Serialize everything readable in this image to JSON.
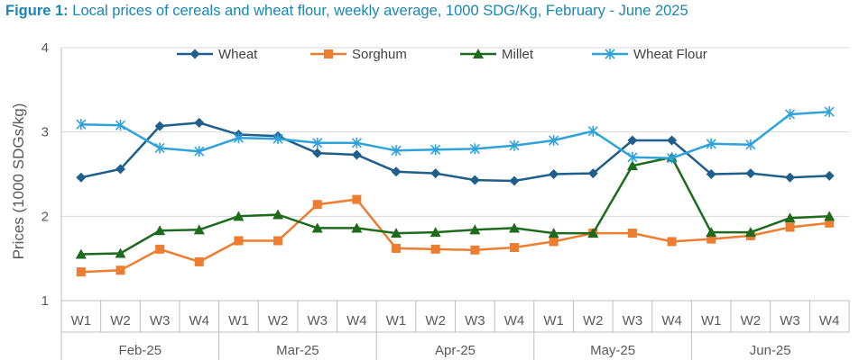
{
  "title": {
    "prefix": "Figure 1:",
    "text": "Local prices of cereals and wheat flour, weekly average, 1000 SDG/Kg, February - June 2025"
  },
  "chart_data": {
    "type": "line",
    "ylabel": "Prices (1000 SDGs/kg)",
    "xlabel": "",
    "ylim": [
      1,
      4
    ],
    "yticks": [
      1,
      2,
      3,
      4
    ],
    "grid": "horizontal",
    "legend_position": "top",
    "categories": [
      "W1",
      "W2",
      "W3",
      "W4",
      "W1",
      "W2",
      "W3",
      "W4",
      "W1",
      "W2",
      "W3",
      "W4",
      "W1",
      "W2",
      "W3",
      "W4",
      "W1",
      "W2",
      "W3",
      "W4"
    ],
    "groups": [
      {
        "label": "Feb-25",
        "count": 4
      },
      {
        "label": "Mar-25",
        "count": 4
      },
      {
        "label": "Apr-25",
        "count": 4
      },
      {
        "label": "May-25",
        "count": 4
      },
      {
        "label": "Jun-25",
        "count": 4
      }
    ],
    "series": [
      {
        "name": "Wheat",
        "color": "#1f5f8b",
        "marker": "diamond",
        "values": [
          2.46,
          2.56,
          3.07,
          3.11,
          2.97,
          2.95,
          2.75,
          2.73,
          2.53,
          2.51,
          2.43,
          2.42,
          2.5,
          2.51,
          2.9,
          2.9,
          2.5,
          2.51,
          2.46,
          2.48
        ]
      },
      {
        "name": "Sorghum",
        "color": "#ed7d31",
        "marker": "square",
        "values": [
          1.34,
          1.36,
          1.61,
          1.46,
          1.71,
          1.71,
          2.14,
          2.2,
          1.62,
          1.61,
          1.6,
          1.63,
          1.7,
          1.8,
          1.8,
          1.7,
          1.73,
          1.77,
          1.87,
          1.92
        ]
      },
      {
        "name": "Millet",
        "color": "#1e6b1e",
        "marker": "triangle",
        "values": [
          1.55,
          1.56,
          1.83,
          1.84,
          2.0,
          2.02,
          1.86,
          1.86,
          1.8,
          1.81,
          1.84,
          1.86,
          1.8,
          1.8,
          2.6,
          2.7,
          1.81,
          1.81,
          1.98,
          2.0
        ]
      },
      {
        "name": "Wheat Flour",
        "color": "#2ea3db",
        "marker": "asterisk",
        "values": [
          3.09,
          3.08,
          2.81,
          2.77,
          2.93,
          2.92,
          2.87,
          2.87,
          2.78,
          2.79,
          2.8,
          2.84,
          2.9,
          3.01,
          2.7,
          2.69,
          2.86,
          2.85,
          3.21,
          3.24
        ]
      }
    ]
  }
}
